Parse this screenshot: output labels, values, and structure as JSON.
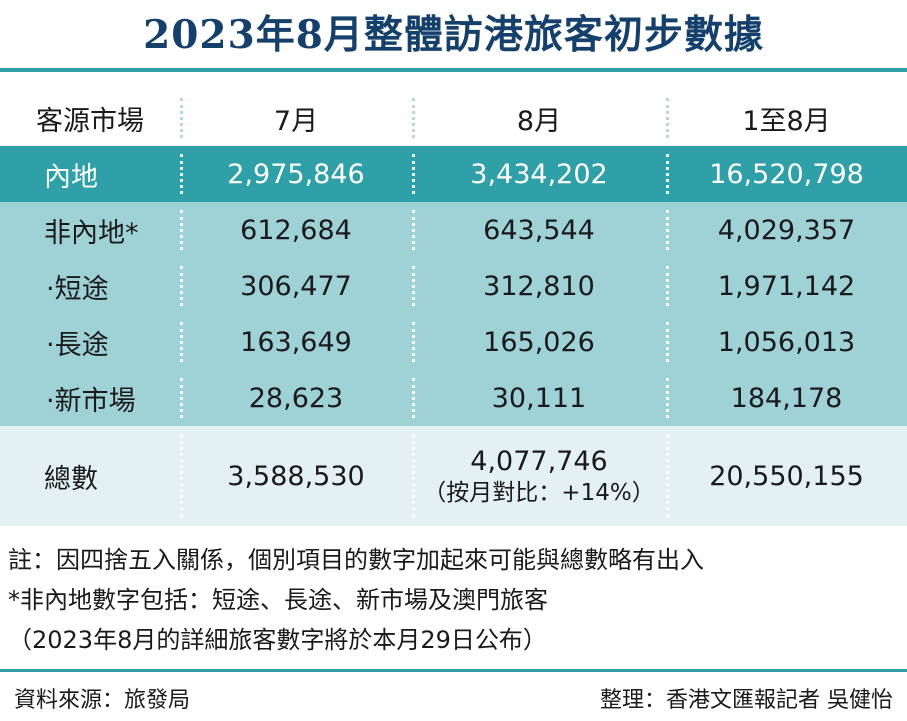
{
  "title": "2023年8月整體訪港旅客初步數據",
  "table": {
    "headers": [
      "客源市場",
      "7月",
      "8月",
      "1至8月"
    ],
    "mainland": {
      "label": "內地",
      "jul": "2,975,846",
      "aug": "3,434,202",
      "ytd": "16,520,798"
    },
    "non_mainland": {
      "label": "非內地*",
      "jul": "612,684",
      "aug": "643,544",
      "ytd": "4,029,357"
    },
    "sub_rows": [
      {
        "label": "‧短途",
        "jul": "306,477",
        "aug": "312,810",
        "ytd": "1,971,142"
      },
      {
        "label": "‧長途",
        "jul": "163,649",
        "aug": "165,026",
        "ytd": "1,056,013"
      },
      {
        "label": "‧新市場",
        "jul": "28,623",
        "aug": "30,111",
        "ytd": "184,178"
      }
    ],
    "total": {
      "label": "總數",
      "jul": "3,588,530",
      "aug": "4,077,746",
      "aug_change": "（按月對比：+14%）",
      "ytd": "20,550,155"
    }
  },
  "notes": [
    "註：因四捨五入關係，個別項目的數字加起來可能與總數略有出入",
    "*非內地數字包括：短途、長途、新市場及澳門旅客",
    "（2023年8月的詳細旅客數字將於本月29日公布）"
  ],
  "footer": {
    "source": "資料來源：旅發局",
    "editor": "整理：香港文匯報記者 吳健怡"
  },
  "colors": {
    "title": "#14406b",
    "accent": "#2fa0a8",
    "band": "#9fd2d6",
    "total_bg": "#e3f1f2"
  }
}
